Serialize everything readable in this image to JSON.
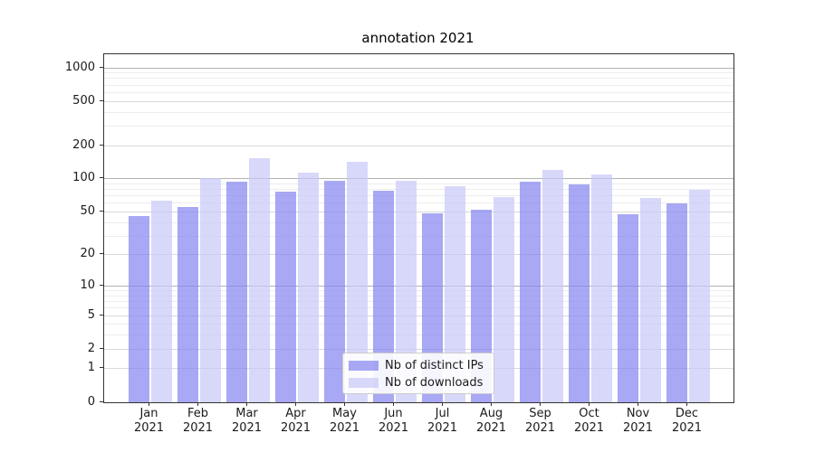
{
  "chart_data": {
    "type": "bar",
    "title": "annotation 2021",
    "categories": [
      "Jan",
      "Feb",
      "Mar",
      "Apr",
      "May",
      "Jun",
      "Jul",
      "Aug",
      "Sep",
      "Oct",
      "Nov",
      "Dec"
    ],
    "year_label": "2021",
    "series": [
      {
        "name": "Nb of distinct IPs",
        "values": [
          46,
          56,
          95,
          76,
          97,
          78,
          49,
          52,
          95,
          90,
          48,
          60
        ],
        "color": "rgba(131,131,239,0.7)"
      },
      {
        "name": "Nb of downloads",
        "values": [
          63,
          101,
          153,
          113,
          142,
          96,
          86,
          68,
          120,
          110,
          67,
          80
        ],
        "color": "rgba(199,199,248,0.7)"
      }
    ],
    "xlabel": "",
    "ylabel": "",
    "y_axis": {
      "scale": "log1p",
      "labeled_ticks": [
        0,
        1,
        2,
        5,
        10,
        20,
        50,
        100,
        200,
        500,
        1000
      ],
      "major_gridlines": [
        10,
        100,
        1000
      ],
      "medium_gridlines": [
        1,
        2,
        5,
        20,
        50,
        200,
        500
      ],
      "minor_gridlines": [
        3,
        4,
        6,
        7,
        8,
        9,
        30,
        40,
        60,
        70,
        80,
        90,
        300,
        400,
        600,
        700,
        800,
        900
      ],
      "ylim": [
        0,
        1325
      ]
    },
    "grid": true,
    "legend_position": "lower center"
  },
  "colors": {
    "grid_major": "#b3b3b3",
    "grid_medium": "#d9d9d9",
    "grid_minor": "#ededed",
    "spine": "#333333",
    "text": "#1a1a1a"
  }
}
